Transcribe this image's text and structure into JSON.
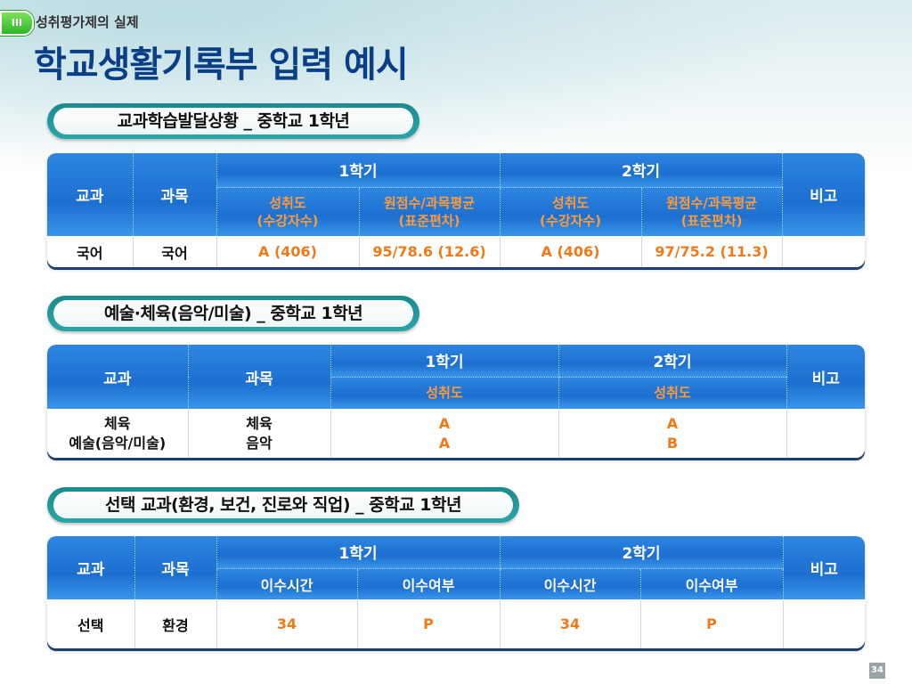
{
  "header": {
    "badge": "III",
    "section": "성취평가제의 실제",
    "title": "학교생활기록부 입력 예시"
  },
  "t1": {
    "label": "교과학습발달상황 _ 중학교 1학년",
    "col_subject": "교과",
    "col_course": "과목",
    "sem1": "1학기",
    "sem2": "2학기",
    "remarks": "비고",
    "sub": [
      "성취도\n(수강자수)",
      "원점수/과목평균\n(표준편차)",
      "성취도\n(수강자수)",
      "원점수/과목평균\n(표준편차)"
    ],
    "row": {
      "subject": "국어",
      "course": "국어",
      "values": [
        "A (406)",
        "95/78.6 (12.6)",
        "A (406)",
        "97/75.2 (11.3)"
      ],
      "remarks": ""
    }
  },
  "t2": {
    "label": "예술·체육(음악/미술) _ 중학교 1학년",
    "col_subject": "교과",
    "col_course": "과목",
    "sem1": "1학기",
    "sem2": "2학기",
    "remarks": "비고",
    "sub": [
      "성취도",
      "성취도"
    ],
    "row": {
      "subject": "체육\n예술(음악/미술)",
      "course": "체육\n음악",
      "values": [
        "A\nA",
        "A\nB"
      ],
      "remarks": ""
    }
  },
  "t3": {
    "label": "선택 교과(환경, 보건, 진로와 직업) _ 중학교 1학년",
    "col_subject": "교과",
    "col_course": "과목",
    "sem1": "1학기",
    "sem2": "2학기",
    "remarks": "비고",
    "sub": [
      "이수시간",
      "이수여부",
      "이수시간",
      "이수여부"
    ],
    "row": {
      "subject": "선택",
      "course": "환경",
      "values": [
        "34",
        "P",
        "34",
        "P"
      ],
      "remarks": ""
    }
  },
  "page_number": "34"
}
